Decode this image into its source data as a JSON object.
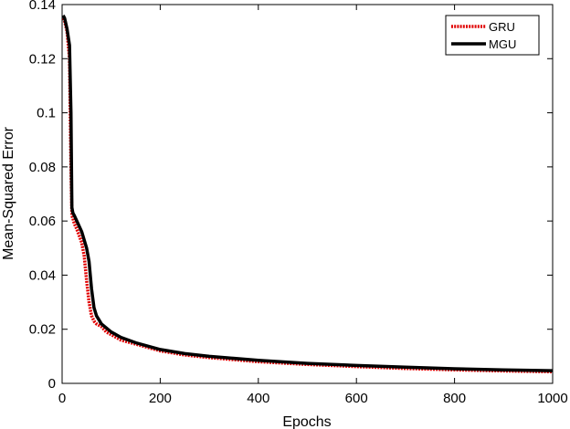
{
  "chart_data": {
    "type": "line",
    "xlabel": "Epochs",
    "ylabel": "Mean-Squared Error",
    "xlim": [
      0,
      1000
    ],
    "ylim": [
      0,
      0.14
    ],
    "xticks": [
      0,
      200,
      400,
      600,
      800,
      1000
    ],
    "yticks": [
      0,
      0.02,
      0.04,
      0.06,
      0.08,
      0.1,
      0.12,
      0.14
    ],
    "xtick_labels": [
      "0",
      "200",
      "400",
      "600",
      "800",
      "1000"
    ],
    "ytick_labels": [
      "0",
      "0.02",
      "0.04",
      "0.06",
      "0.08",
      "0.1",
      "0.12",
      "0.14"
    ],
    "grid": false,
    "legend_position": "top-right",
    "series": [
      {
        "name": "GRU",
        "color": "#e00000",
        "style": "dotted",
        "x": [
          2,
          5,
          10,
          15,
          18,
          20,
          22,
          25,
          30,
          40,
          45,
          50,
          55,
          60,
          65,
          70,
          80,
          90,
          100,
          120,
          150,
          200,
          250,
          300,
          400,
          500,
          600,
          700,
          800,
          900,
          1000
        ],
        "y": [
          0.135,
          0.134,
          0.13,
          0.12,
          0.08,
          0.062,
          0.061,
          0.059,
          0.057,
          0.052,
          0.047,
          0.038,
          0.03,
          0.025,
          0.023,
          0.022,
          0.021,
          0.019,
          0.018,
          0.016,
          0.0145,
          0.012,
          0.0105,
          0.0095,
          0.008,
          0.007,
          0.0062,
          0.0055,
          0.005,
          0.0046,
          0.0043
        ]
      },
      {
        "name": "MGU",
        "color": "#000000",
        "style": "solid",
        "x": [
          2,
          5,
          10,
          15,
          18,
          20,
          22,
          25,
          30,
          40,
          50,
          55,
          60,
          65,
          70,
          75,
          80,
          90,
          100,
          120,
          150,
          200,
          250,
          300,
          400,
          500,
          600,
          700,
          800,
          900,
          1000
        ],
        "y": [
          0.136,
          0.135,
          0.131,
          0.125,
          0.1,
          0.065,
          0.063,
          0.062,
          0.06,
          0.056,
          0.05,
          0.045,
          0.035,
          0.028,
          0.025,
          0.0235,
          0.022,
          0.0205,
          0.019,
          0.017,
          0.015,
          0.0125,
          0.011,
          0.01,
          0.0085,
          0.0074,
          0.0066,
          0.006,
          0.0054,
          0.005,
          0.0047
        ]
      }
    ]
  }
}
